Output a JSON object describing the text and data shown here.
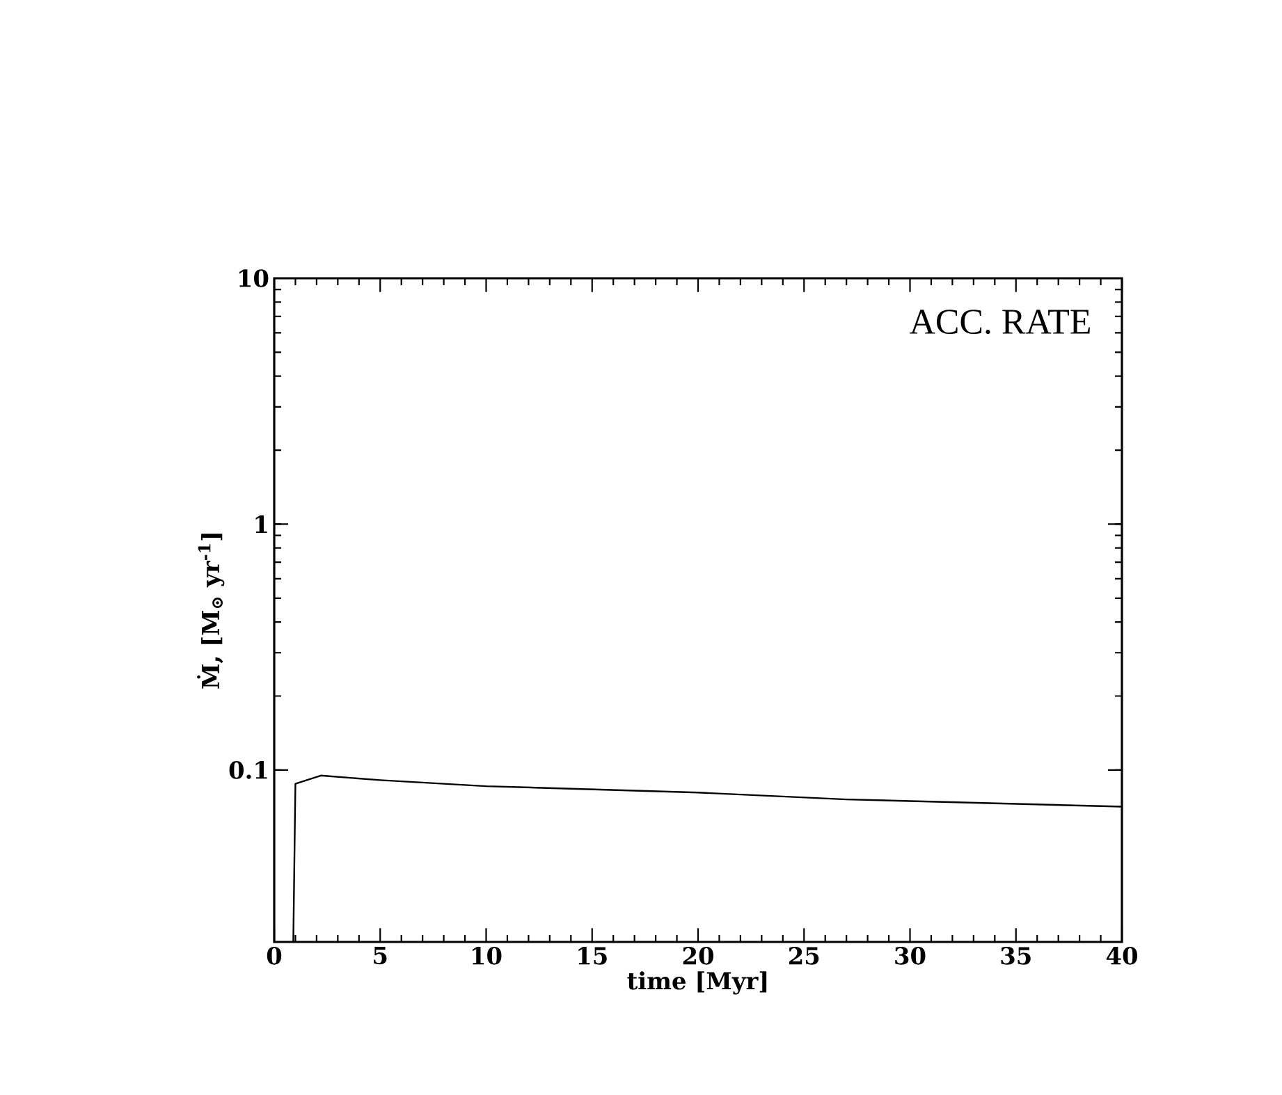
{
  "chart_data": {
    "type": "line",
    "xlabel": "time  [Myr]",
    "ylabel": "Ṁ, [M$_{⊙}$ yr$^{-1}$]",
    "annotations": [
      "ACC. RATE"
    ],
    "x": [
      0.9,
      1.0,
      2.2,
      5,
      10,
      20,
      27,
      40
    ],
    "series": [
      {
        "color": "#000000",
        "values": [
          0.02,
          0.088,
          0.095,
          0.091,
          0.086,
          0.081,
          0.076,
          0.071
        ]
      }
    ],
    "log": "y",
    "xlim": [
      0,
      40
    ],
    "ylim": [
      0.02,
      10
    ],
    "xticks": [
      0,
      5,
      10,
      15,
      20,
      25,
      30,
      35,
      40
    ],
    "yticks": [
      0.1,
      1,
      10
    ],
    "grid": false,
    "marker": "none",
    "line_style": "solid"
  }
}
